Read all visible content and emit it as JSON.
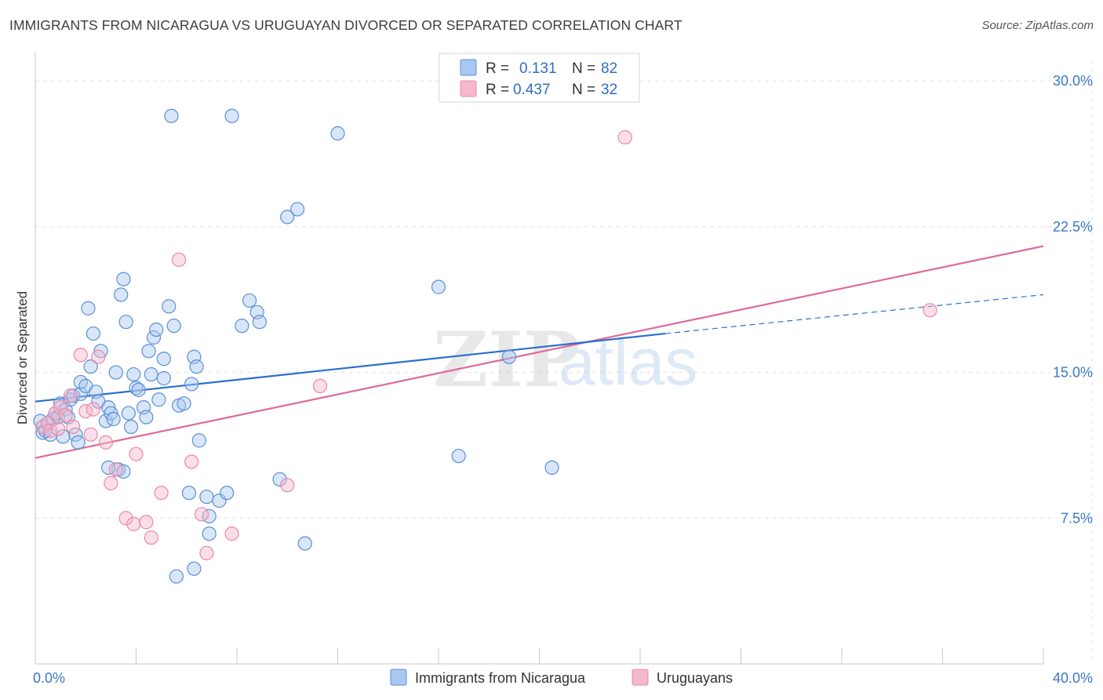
{
  "header": {
    "title": "IMMIGRANTS FROM NICARAGUA VS URUGUAYAN DIVORCED OR SEPARATED CORRELATION CHART",
    "source": "Source: ZipAtlas.com"
  },
  "watermark": {
    "zip": "ZIP",
    "atlas": "atlas"
  },
  "colors": {
    "blue_fill": "#a9c8f0",
    "blue_stroke": "#5a8fd6",
    "blue_line": "#2a6fcf",
    "pink_fill": "#f6b8cb",
    "pink_stroke": "#e888a8",
    "pink_line": "#e0699a",
    "grid": "#e3e3e3",
    "axis_label": "#3a78c8"
  },
  "chart_data": {
    "type": "scatter",
    "title": "IMMIGRANTS FROM NICARAGUA VS URUGUAYAN DIVORCED OR SEPARATED CORRELATION CHART",
    "xlabel": "",
    "ylabel": "Divorced or Separated",
    "xlim": [
      0,
      40
    ],
    "ylim": [
      0,
      31.5
    ],
    "x_tick_labels": [
      "0.0%",
      "40.0%"
    ],
    "y_ticks": [
      7.5,
      15.0,
      22.5,
      30.0
    ],
    "y_tick_labels": [
      "7.5%",
      "15.0%",
      "22.5%",
      "30.0%"
    ],
    "grid": true,
    "legend": [
      {
        "series": "Immigrants from Nicaragua",
        "r_label": "R =",
        "r": "0.131",
        "n_label": "N =",
        "n": "82"
      },
      {
        "series": "Uruguayans",
        "r_label": "R =",
        "r": "0.437",
        "n_label": "N =",
        "n": "32"
      }
    ],
    "series": [
      {
        "name": "Immigrants from Nicaragua",
        "color": "blue",
        "trend": {
          "x0": 0,
          "y0": 13.5,
          "x1": 25,
          "y1": 17.0,
          "dash_x1": 40,
          "dash_y1": 19.0
        },
        "points": [
          [
            0.2,
            12.5
          ],
          [
            0.3,
            12.2
          ],
          [
            0.3,
            11.9
          ],
          [
            0.4,
            12.0
          ],
          [
            0.5,
            12.4
          ],
          [
            0.6,
            11.8
          ],
          [
            0.7,
            12.6
          ],
          [
            0.8,
            12.9
          ],
          [
            0.9,
            12.7
          ],
          [
            1.0,
            13.4
          ],
          [
            1.1,
            11.7
          ],
          [
            1.2,
            13.1
          ],
          [
            1.3,
            12.7
          ],
          [
            1.4,
            13.6
          ],
          [
            1.5,
            13.8
          ],
          [
            1.6,
            11.8
          ],
          [
            1.7,
            11.4
          ],
          [
            1.8,
            13.9
          ],
          [
            1.8,
            14.5
          ],
          [
            2.0,
            14.3
          ],
          [
            2.1,
            18.3
          ],
          [
            2.2,
            15.3
          ],
          [
            2.3,
            17.0
          ],
          [
            2.4,
            14.0
          ],
          [
            2.5,
            13.5
          ],
          [
            2.6,
            16.1
          ],
          [
            2.8,
            12.5
          ],
          [
            2.9,
            13.2
          ],
          [
            3.0,
            12.9
          ],
          [
            3.1,
            12.6
          ],
          [
            3.2,
            15.0
          ],
          [
            3.3,
            10.0
          ],
          [
            3.4,
            19.0
          ],
          [
            3.5,
            19.8
          ],
          [
            3.6,
            17.6
          ],
          [
            3.7,
            12.9
          ],
          [
            3.8,
            12.2
          ],
          [
            3.9,
            14.9
          ],
          [
            4.0,
            14.2
          ],
          [
            4.1,
            14.1
          ],
          [
            4.3,
            13.2
          ],
          [
            4.4,
            12.7
          ],
          [
            4.5,
            16.1
          ],
          [
            4.6,
            14.9
          ],
          [
            4.7,
            16.8
          ],
          [
            4.8,
            17.2
          ],
          [
            4.9,
            13.6
          ],
          [
            5.1,
            14.7
          ],
          [
            5.1,
            15.7
          ],
          [
            5.3,
            18.4
          ],
          [
            5.4,
            28.2
          ],
          [
            5.5,
            17.4
          ],
          [
            5.7,
            13.3
          ],
          [
            5.9,
            13.4
          ],
          [
            6.1,
            8.8
          ],
          [
            6.2,
            14.4
          ],
          [
            6.3,
            4.9
          ],
          [
            6.3,
            15.8
          ],
          [
            6.4,
            15.3
          ],
          [
            6.5,
            11.5
          ],
          [
            6.8,
            8.6
          ],
          [
            6.9,
            6.7
          ],
          [
            7.3,
            8.4
          ],
          [
            7.6,
            8.8
          ],
          [
            7.8,
            28.2
          ],
          [
            8.2,
            17.4
          ],
          [
            8.5,
            18.7
          ],
          [
            8.8,
            18.1
          ],
          [
            8.9,
            17.6
          ],
          [
            9.7,
            9.5
          ],
          [
            10.0,
            23.0
          ],
          [
            10.4,
            23.4
          ],
          [
            10.7,
            6.2
          ],
          [
            12.0,
            27.3
          ],
          [
            16.0,
            19.4
          ],
          [
            16.8,
            10.7
          ],
          [
            18.8,
            15.8
          ],
          [
            20.5,
            10.1
          ],
          [
            5.6,
            4.5
          ],
          [
            6.9,
            7.6
          ],
          [
            3.5,
            9.9
          ],
          [
            2.9,
            10.1
          ]
        ]
      },
      {
        "name": "Uruguayans",
        "color": "pink",
        "trend": {
          "x0": 0,
          "y0": 10.6,
          "x1": 40,
          "y1": 21.5
        },
        "points": [
          [
            0.3,
            12.2
          ],
          [
            0.5,
            12.4
          ],
          [
            0.6,
            12.0
          ],
          [
            0.8,
            12.9
          ],
          [
            1.0,
            13.2
          ],
          [
            1.2,
            12.8
          ],
          [
            1.4,
            13.8
          ],
          [
            1.5,
            12.2
          ],
          [
            1.8,
            15.9
          ],
          [
            2.0,
            13.0
          ],
          [
            2.2,
            11.8
          ],
          [
            2.5,
            15.8
          ],
          [
            2.8,
            11.4
          ],
          [
            3.0,
            9.3
          ],
          [
            3.2,
            10.0
          ],
          [
            3.6,
            7.5
          ],
          [
            3.9,
            7.2
          ],
          [
            4.0,
            10.8
          ],
          [
            4.4,
            7.3
          ],
          [
            4.6,
            6.5
          ],
          [
            5.0,
            8.8
          ],
          [
            5.7,
            20.8
          ],
          [
            6.2,
            10.4
          ],
          [
            6.6,
            7.7
          ],
          [
            6.8,
            5.7
          ],
          [
            7.8,
            6.7
          ],
          [
            10.0,
            9.2
          ],
          [
            11.3,
            14.3
          ],
          [
            23.4,
            27.1
          ],
          [
            35.5,
            18.2
          ],
          [
            2.3,
            13.1
          ],
          [
            0.9,
            12.1
          ]
        ]
      }
    ]
  }
}
